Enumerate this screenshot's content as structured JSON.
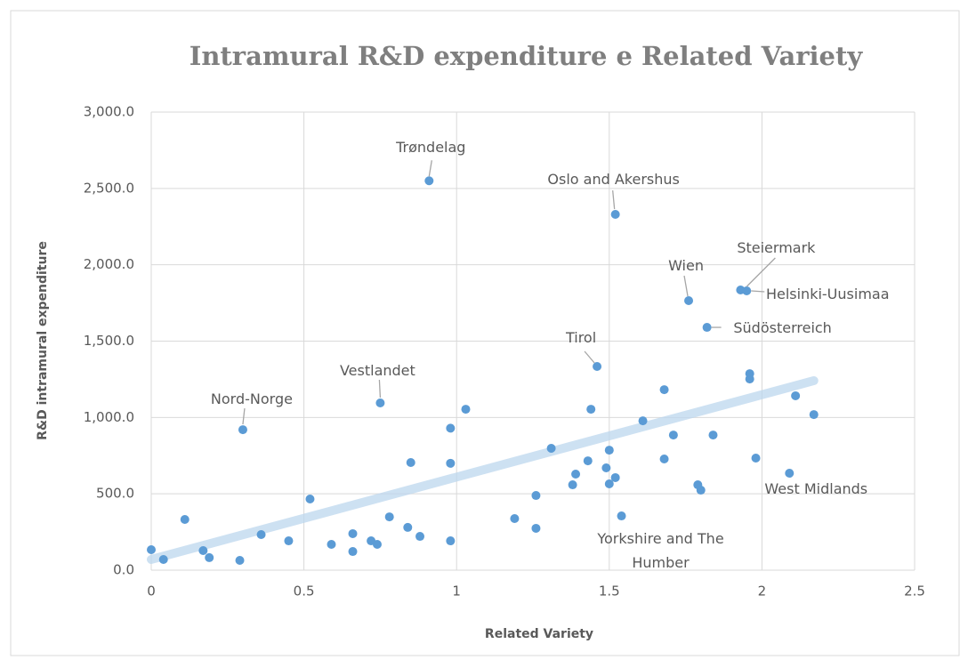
{
  "chart_data": {
    "type": "scatter",
    "title": "Intramural R&D expenditure e Related Variety",
    "x_label": "Related Variety",
    "y_label": "R&D intramural expenditure",
    "color": "#5b9bd5",
    "grid": true,
    "xlim": [
      0,
      2.5
    ],
    "ylim": [
      0,
      3000
    ],
    "xticks": [
      0,
      0.5,
      1,
      1.5,
      2,
      2.5
    ],
    "yticks": [
      {
        "value": 0,
        "label": "0.0"
      },
      {
        "value": 500,
        "label": "500.0"
      },
      {
        "value": 1000,
        "label": "1,000.0"
      },
      {
        "value": 1500,
        "label": "1,500.0"
      },
      {
        "value": 2000,
        "label": "2,000.0"
      },
      {
        "value": 2500,
        "label": "2,500.0"
      },
      {
        "value": 3000,
        "label": "3,000.0"
      }
    ],
    "x": [
      0,
      0.04,
      0.11,
      0.17,
      0.19,
      0.29,
      0.3,
      0.36,
      0.45,
      0.52,
      0.59,
      0.66,
      0.66,
      0.72,
      0.74,
      0.75,
      0.78,
      0.84,
      0.85,
      0.91,
      0.88,
      0.98,
      0.98,
      0.98,
      1.03,
      1.19,
      1.26,
      1.26,
      1.31,
      1.38,
      1.39,
      1.43,
      1.44,
      1.46,
      1.49,
      1.5,
      1.5,
      1.52,
      1.52,
      1.54,
      1.61,
      1.68,
      1.68,
      1.71,
      1.76,
      1.79,
      1.8,
      1.82,
      1.84,
      1.93,
      1.95,
      1.96,
      1.96,
      1.98,
      2.09,
      2.11,
      2.17
    ],
    "y": [
      134,
      70,
      332,
      128,
      82,
      64,
      920,
      233,
      192,
      466,
      169,
      239,
      122,
      192,
      169,
      1095,
      349,
      280,
      705,
      2550,
      221,
      192,
      930,
      700,
      1054,
      338,
      274,
      489,
      798,
      559,
      629,
      716,
      1054,
      1334,
      670,
      565,
      786,
      606,
      2330,
      355,
      978,
      728,
      1182,
      885,
      1765,
      559,
      524,
      1590,
      885,
      1835,
      1829,
      1252,
      1287,
      734,
      635,
      1142,
      1019
    ],
    "labels": [
      null,
      null,
      null,
      null,
      null,
      null,
      "Nord-Norge",
      null,
      null,
      null,
      null,
      null,
      null,
      null,
      null,
      "Vestlandet",
      null,
      null,
      null,
      "Trøndelag",
      null,
      null,
      null,
      null,
      null,
      null,
      null,
      null,
      null,
      null,
      null,
      null,
      null,
      "Tirol",
      null,
      null,
      null,
      null,
      "Oslo and Akershus",
      "Yorkshire and The Humber",
      null,
      null,
      null,
      null,
      "Wien",
      null,
      null,
      "Südösterreich",
      null,
      "Steiermark",
      "Helsinki-Uusimaa",
      null,
      null,
      null,
      "West Midlands",
      null,
      null
    ],
    "trendline": {
      "color": "#bdd7ee",
      "x": [
        0,
        2.17
      ],
      "y": [
        70,
        1241
      ]
    }
  }
}
